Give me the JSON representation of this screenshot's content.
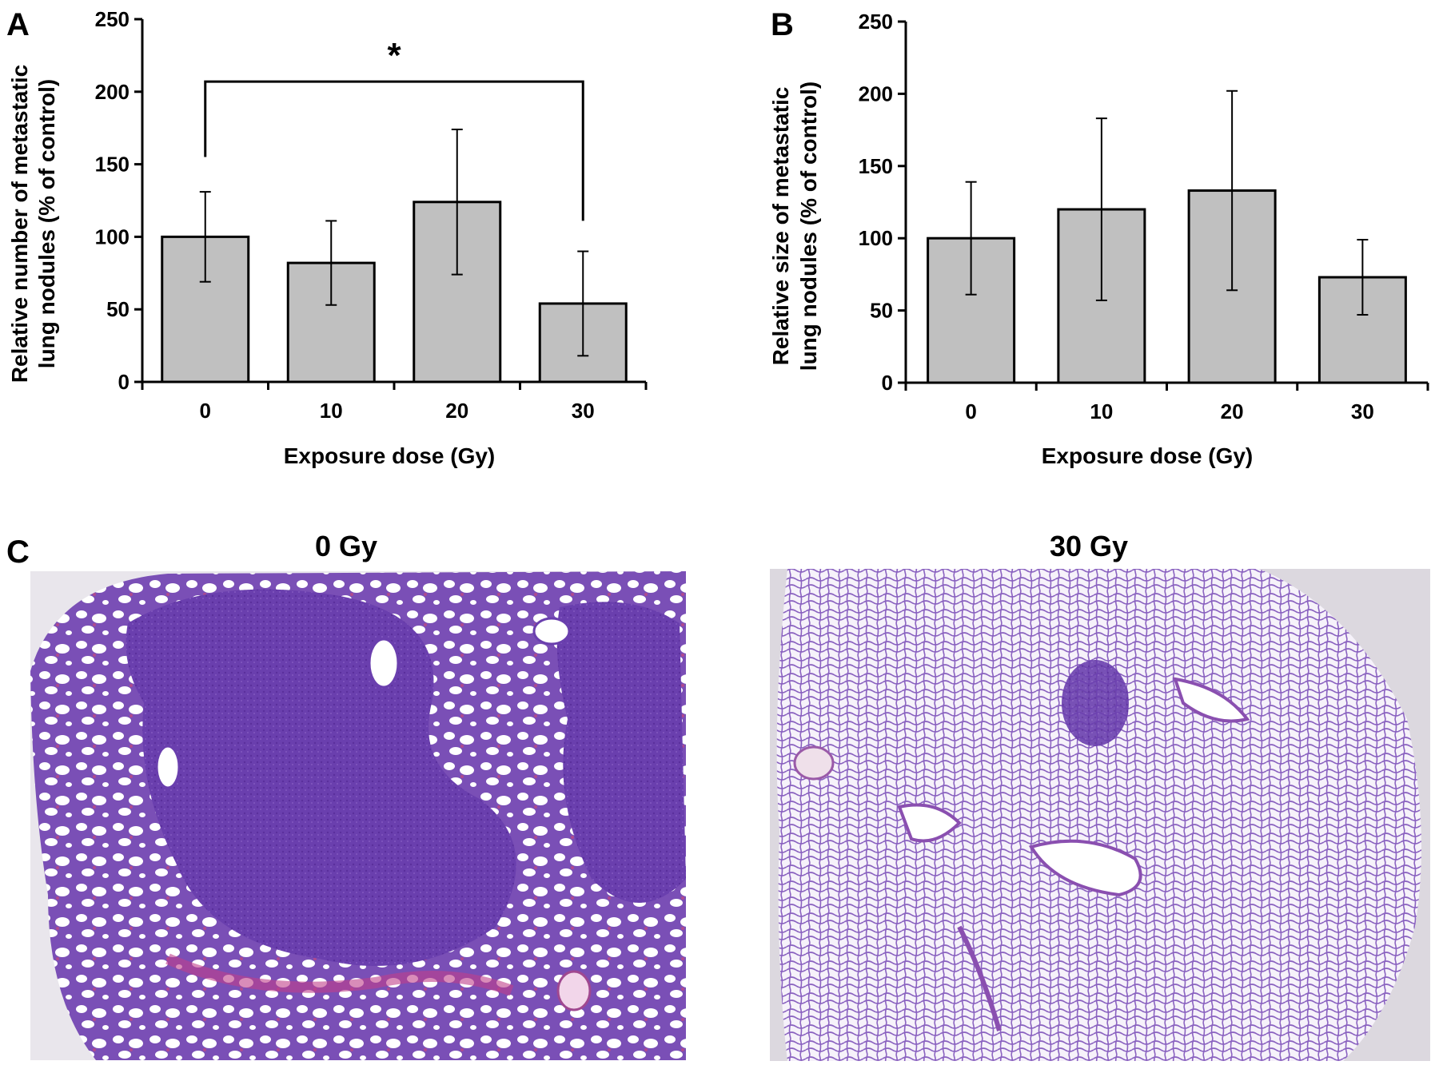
{
  "panel_labels": {
    "a": "A",
    "b": "B",
    "c": "C"
  },
  "colors": {
    "bar_fill": "#c0c0c0",
    "axis": "#000000",
    "tissue_purple": "#6a3fae",
    "tissue_pink": "#b65aa8"
  },
  "chart_data": [
    {
      "type": "bar",
      "panel": "A",
      "categories": [
        "0",
        "10",
        "20",
        "30"
      ],
      "values": [
        100,
        82,
        124,
        54
      ],
      "errors": [
        31,
        29,
        50,
        36
      ],
      "ylim": [
        0,
        250
      ],
      "yticks": [
        "0",
        "50",
        "100",
        "150",
        "200",
        "250"
      ],
      "xlabel": "Exposure dose (Gy)",
      "ylabel_line1": "Relative number of metastatic",
      "ylabel_line2": "lung nodules (% of control)",
      "significance": {
        "from": "0",
        "to": "30",
        "label": "*"
      }
    },
    {
      "type": "bar",
      "panel": "B",
      "categories": [
        "0",
        "10",
        "20",
        "30"
      ],
      "values": [
        100,
        120,
        133,
        73
      ],
      "errors": [
        39,
        63,
        69,
        26
      ],
      "ylim": [
        0,
        250
      ],
      "yticks": [
        "0",
        "50",
        "100",
        "150",
        "200",
        "250"
      ],
      "xlabel": "Exposure dose (Gy)",
      "ylabel_line1": "Relative size of metastatic",
      "ylabel_line2": "lung nodules (% of control)"
    }
  ],
  "images": [
    {
      "title": "0 Gy",
      "depiction": "lung-tissue-large-metastatic-nodule"
    },
    {
      "title": "30 Gy",
      "depiction": "lung-tissue-normal-alveoli"
    }
  ]
}
